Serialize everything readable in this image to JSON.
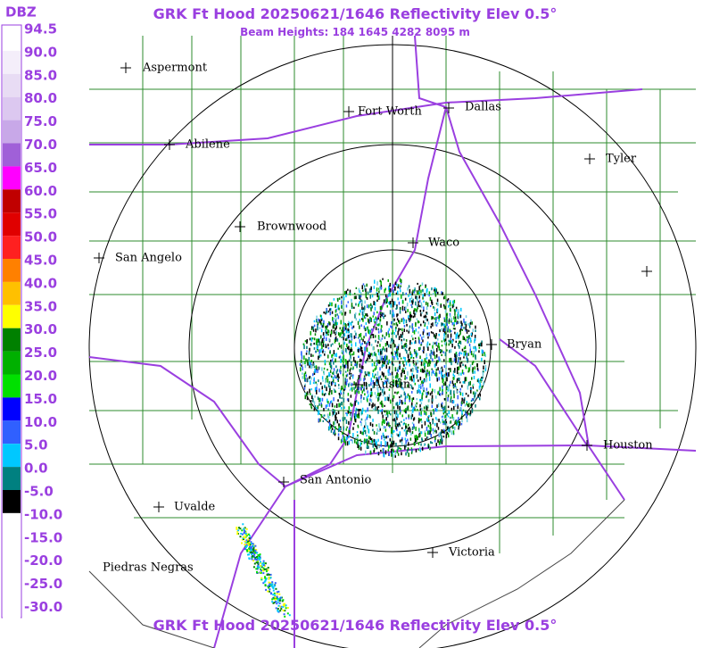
{
  "header": {
    "title": "GRK Ft Hood 20250621/1646 Reflectivity Elev 0.5°",
    "subtitle": "Beam Heights: 184 1645 4282 8095 m"
  },
  "legend": {
    "unit": "DBZ",
    "levels": [
      "94.5",
      "90.0",
      "85.0",
      "80.0",
      "75.0",
      "70.0",
      "65.0",
      "60.0",
      "55.0",
      "50.0",
      "45.0",
      "40.0",
      "35.0",
      "30.0",
      "25.0",
      "20.0",
      "15.0",
      "10.0",
      "5.0",
      "0.0",
      "-5.0",
      "-10.0",
      "-15.0",
      "-20.0",
      "-25.0",
      "-30.0"
    ]
  },
  "cities": [
    {
      "label": "Aspermont"
    },
    {
      "label": "Abilene"
    },
    {
      "label": "Fort Worth"
    },
    {
      "label": "Dallas"
    },
    {
      "label": "Tyler"
    },
    {
      "label": "Brownwood"
    },
    {
      "label": "Waco"
    },
    {
      "label": "San Angelo"
    },
    {
      "label": "Bryan"
    },
    {
      "label": "Austin"
    },
    {
      "label": "Houston"
    },
    {
      "label": "San Antonio"
    },
    {
      "label": "Uvalde"
    },
    {
      "label": "Victoria"
    },
    {
      "label": "Piedras Negras"
    }
  ],
  "footer": {
    "title": "GRK Ft Hood 20250621/1646 Reflectivity Elev 0.5°"
  }
}
